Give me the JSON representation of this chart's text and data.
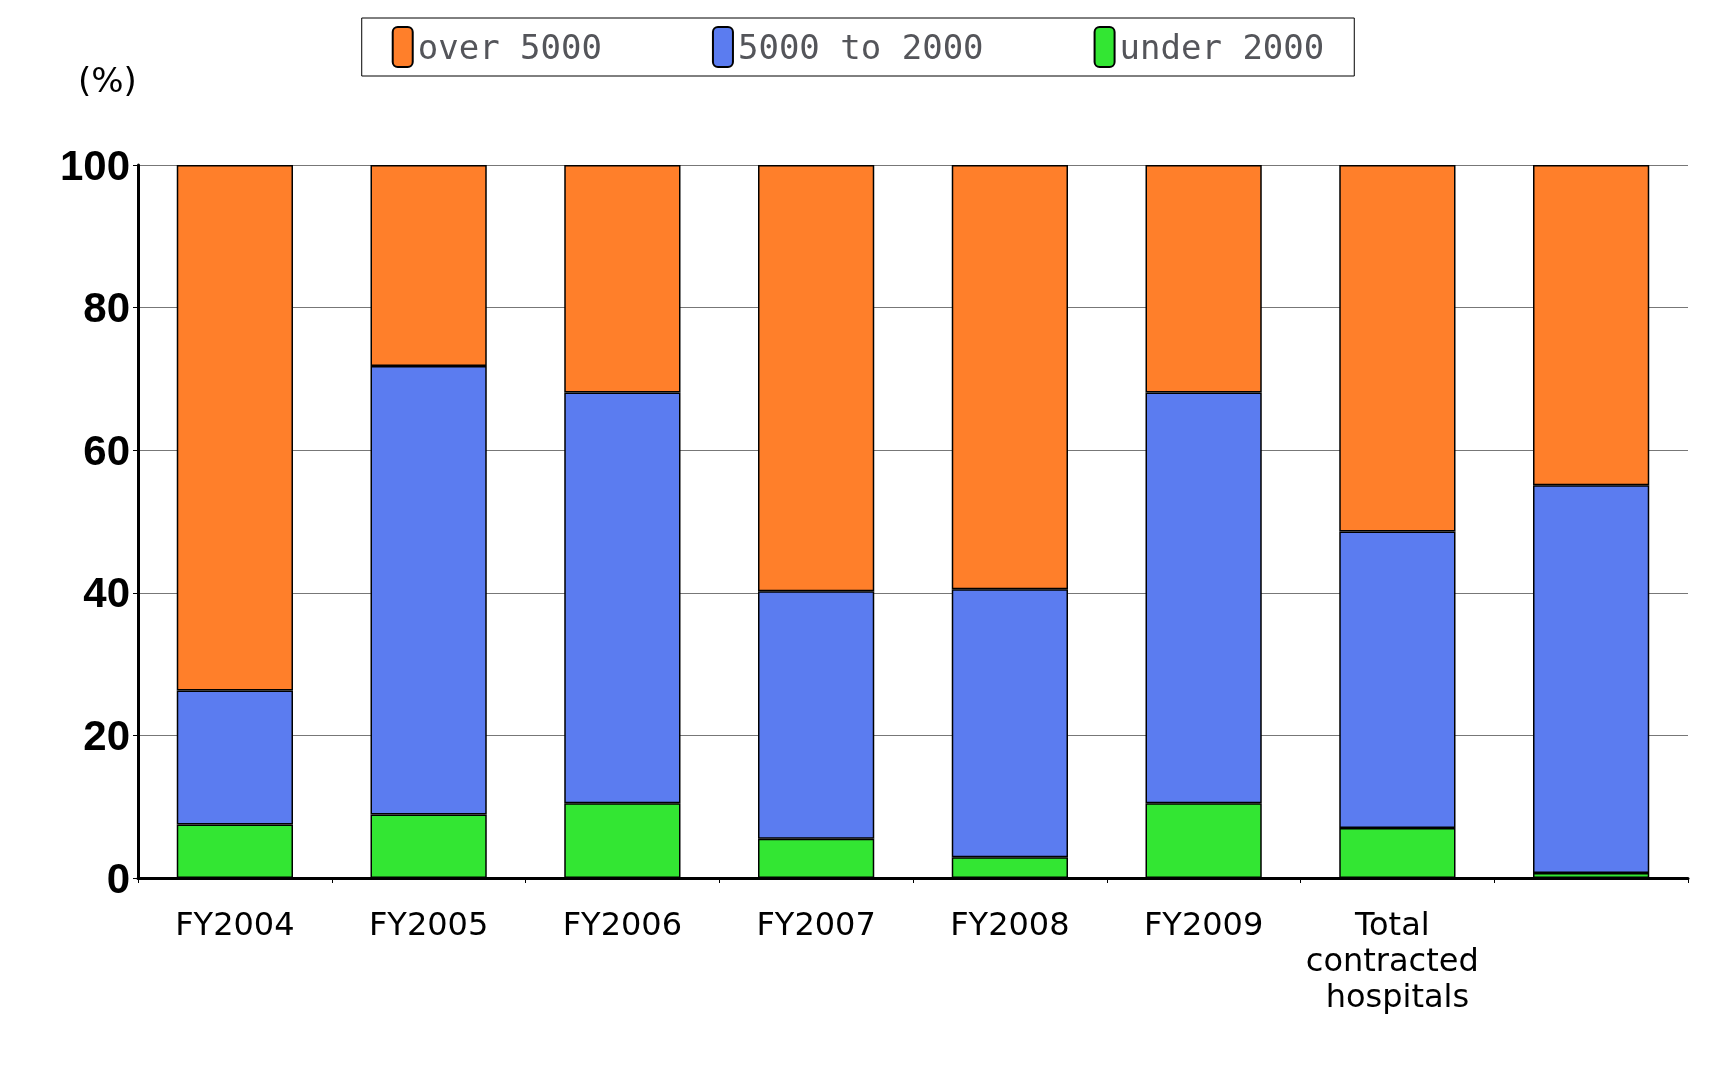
{
  "chart_data": {
    "type": "bar",
    "stacked": true,
    "ylabel": "(%)",
    "categories": [
      "FY2004",
      "FY2005",
      "FY2006",
      "FY2007",
      "FY2008",
      "FY2009",
      "Total contracted hospitals",
      null
    ],
    "series": [
      {
        "name": "under 2000",
        "color": "#33e633",
        "values": [
          7.5,
          8.9,
          10.5,
          5.5,
          2.9,
          10.5,
          7.0,
          0.7
        ]
      },
      {
        "name": "5000 to 2000",
        "color": "#5b7cf0",
        "values": [
          18.8,
          62.9,
          57.6,
          34.7,
          37.6,
          57.6,
          41.6,
          54.4
        ]
      },
      {
        "name": "over 5000",
        "color": "#ff7f2a",
        "values": [
          73.7,
          28.2,
          31.9,
          59.8,
          59.5,
          31.9,
          51.4,
          44.9
        ]
      }
    ],
    "ylim": [
      0,
      100
    ],
    "yticks": [
      0,
      20,
      40,
      60,
      80,
      100
    ],
    "grid": "y",
    "legend": "top"
  }
}
